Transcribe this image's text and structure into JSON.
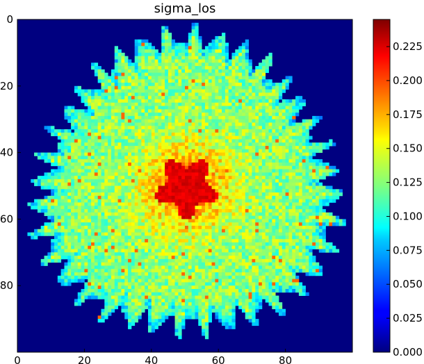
{
  "chart_data": {
    "type": "heatmap",
    "title": "sigma_los",
    "xlabel": "",
    "ylabel": "",
    "grid_size": [
      100,
      100
    ],
    "x_range": [
      0,
      100
    ],
    "y_range": [
      0,
      100
    ],
    "x_ticks": [
      0,
      20,
      40,
      60,
      80
    ],
    "y_ticks": [
      0,
      20,
      40,
      60,
      80
    ],
    "y_axis_inverted": true,
    "grid": false,
    "colormap": "jet",
    "colorbar": {
      "vmin": 0.0,
      "vmax": 0.245,
      "ticks": [
        "0.000",
        "0.025",
        "0.050",
        "0.075",
        "0.100",
        "0.125",
        "0.150",
        "0.175",
        "0.200",
        "0.225"
      ],
      "placement": "right"
    },
    "description": {
      "center": [
        50,
        50
      ],
      "background_value": 0.0,
      "core_value_range": [
        0.19,
        0.23
      ],
      "core_radius": 8,
      "halo_value_range": [
        0.1,
        0.16
      ],
      "outer_radius": 45,
      "spiky_edge": true
    }
  }
}
